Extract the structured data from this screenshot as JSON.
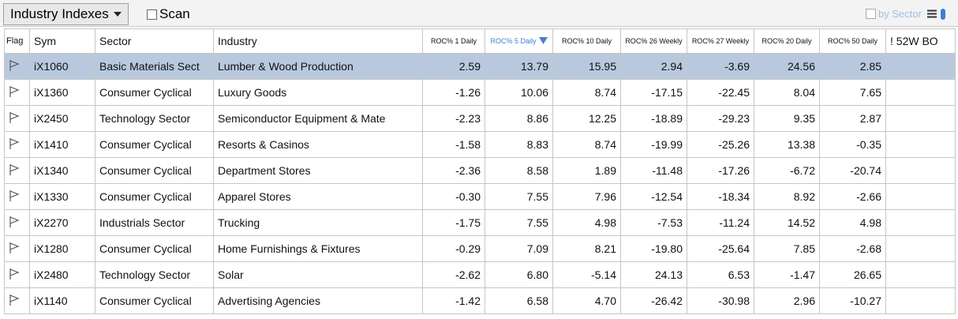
{
  "toolbar": {
    "dropdown": "Industry Indexes",
    "scan": "Scan",
    "by_sector": "by Sector"
  },
  "table": {
    "columns": [
      "Flag",
      "Sym",
      "Sector",
      "Industry",
      "ROC% 1 Daily",
      "ROC% 5 Daily",
      "ROC% 10 Daily",
      "ROC% 26 Weekly",
      "ROC% 27 Weekly",
      "ROC% 20 Daily",
      "ROC% 50 Daily",
      "! 52W BO"
    ],
    "rows": [
      [
        "iX1060",
        "Basic Materials Sect",
        "Lumber & Wood Production",
        "2.59",
        "13.79",
        "15.95",
        "2.94",
        "-3.69",
        "24.56",
        "2.85"
      ],
      [
        "iX1360",
        "Consumer Cyclical",
        "Luxury Goods",
        "-1.26",
        "10.06",
        "8.74",
        "-17.15",
        "-22.45",
        "8.04",
        "7.65"
      ],
      [
        "iX2450",
        "Technology Sector",
        "Semiconductor Equipment & Mate",
        "-2.23",
        "8.86",
        "12.25",
        "-18.89",
        "-29.23",
        "9.35",
        "2.87"
      ],
      [
        "iX1410",
        "Consumer Cyclical",
        "Resorts & Casinos",
        "-1.58",
        "8.83",
        "8.74",
        "-19.99",
        "-25.26",
        "13.38",
        "-0.35"
      ],
      [
        "iX1340",
        "Consumer Cyclical",
        "Department Stores",
        "-2.36",
        "8.58",
        "1.89",
        "-11.48",
        "-17.26",
        "-6.72",
        "-20.74"
      ],
      [
        "iX1330",
        "Consumer Cyclical",
        "Apparel Stores",
        "-0.30",
        "7.55",
        "7.96",
        "-12.54",
        "-18.34",
        "8.92",
        "-2.66"
      ],
      [
        "iX2270",
        "Industrials Sector",
        "Trucking",
        "-1.75",
        "7.55",
        "4.98",
        "-7.53",
        "-11.24",
        "14.52",
        "4.98"
      ],
      [
        "iX1280",
        "Consumer Cyclical",
        "Home Furnishings & Fixtures",
        "-0.29",
        "7.09",
        "8.21",
        "-19.80",
        "-25.64",
        "7.85",
        "-2.68"
      ],
      [
        "iX2480",
        "Technology Sector",
        "Solar",
        "-2.62",
        "6.80",
        "-5.14",
        "24.13",
        "6.53",
        "-1.47",
        "26.65"
      ],
      [
        "iX1140",
        "Consumer Cyclical",
        "Advertising Agencies",
        "-1.42",
        "6.58",
        "4.70",
        "-26.42",
        "-30.98",
        "2.96",
        "-10.27"
      ]
    ]
  }
}
